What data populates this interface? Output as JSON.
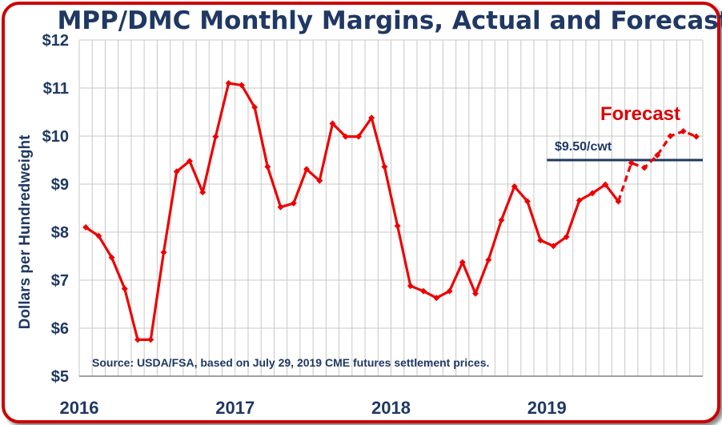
{
  "colors": {
    "frame": "#cc0000",
    "line": "#ee0000",
    "reference": "#1f3864",
    "text": "#1f3864",
    "forecast_label": "#dd0000",
    "grid": "#c8c8c8"
  },
  "chart_data": {
    "type": "line",
    "title": "MPP/DMC Monthly Margins, Actual and Forecast",
    "ylabel": "Dollars per Hundredweight",
    "xlabel": "",
    "ylim": [
      5,
      12
    ],
    "yticks": [
      "$5",
      "$6",
      "$7",
      "$8",
      "$9",
      "$10",
      "$11",
      "$12"
    ],
    "xticks": [
      "2016",
      "2017",
      "2018",
      "2019"
    ],
    "grid": true,
    "x_unit": "month",
    "x_start": "2016-01",
    "series": [
      {
        "style": "solid",
        "x": [
          "2016-01",
          "2016-02",
          "2016-03",
          "2016-04",
          "2016-05",
          "2016-06",
          "2016-07",
          "2016-08",
          "2016-09",
          "2016-10",
          "2016-11",
          "2016-12",
          "2017-01",
          "2017-02",
          "2017-03",
          "2017-04",
          "2017-05",
          "2017-06",
          "2017-07",
          "2017-08",
          "2017-09",
          "2017-10",
          "2017-11",
          "2017-12",
          "2018-01",
          "2018-02",
          "2018-03",
          "2018-04",
          "2018-05",
          "2018-06",
          "2018-07",
          "2018-08",
          "2018-09",
          "2018-10",
          "2018-11",
          "2018-12",
          "2019-01",
          "2019-02",
          "2019-03",
          "2019-04",
          "2019-05",
          "2019-06"
        ],
        "values": [
          8.1,
          7.92,
          7.47,
          6.82,
          5.76,
          5.76,
          7.58,
          9.26,
          9.48,
          8.83,
          9.99,
          11.1,
          11.06,
          10.6,
          9.36,
          8.52,
          8.6,
          9.31,
          9.07,
          10.26,
          9.99,
          9.99,
          10.38,
          9.36,
          8.13,
          6.88,
          6.77,
          6.63,
          6.77,
          7.37,
          6.72,
          7.42,
          8.25,
          8.95,
          8.64,
          7.83,
          7.71,
          7.9,
          8.66,
          8.81,
          8.99,
          8.64
        ]
      },
      {
        "style": "dashed",
        "x": [
          "2019-06",
          "2019-07",
          "2019-08",
          "2019-09",
          "2019-10",
          "2019-11",
          "2019-12"
        ],
        "values": [
          8.64,
          9.44,
          9.34,
          9.6,
          10.0,
          10.1,
          9.99
        ]
      }
    ],
    "reference_line": {
      "value": 9.5,
      "x_from": "2019-01",
      "x_to": "2019-12",
      "label": "$9.50/cwt"
    },
    "annotations": [
      {
        "text": "Forecast"
      },
      {
        "text": "Source:  USDA/FSA, based on July 29, 2019 CME futures settlement prices."
      }
    ]
  }
}
